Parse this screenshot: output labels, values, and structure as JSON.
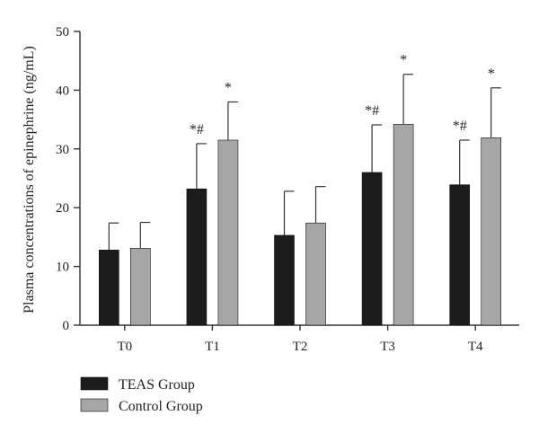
{
  "chart_data": {
    "type": "bar",
    "ylabel": "Plasma concentrations of epinephrine (ng/mL)",
    "xlabel": "",
    "categories": [
      "T0",
      "T1",
      "T2",
      "T3",
      "T4"
    ],
    "ylim": [
      0,
      50
    ],
    "yticks": [
      0,
      10,
      20,
      30,
      40,
      50
    ],
    "legend_position": "bottom-left",
    "grid": false,
    "series": [
      {
        "name": "TEAS Group",
        "color": "#1c1c1c",
        "values": [
          12.8,
          23.2,
          15.3,
          26.0,
          23.9
        ],
        "errors": [
          4.6,
          7.7,
          7.5,
          8.1,
          7.6
        ],
        "annotations": [
          "",
          "*#",
          "",
          "*#",
          "*#"
        ]
      },
      {
        "name": "Control Group",
        "color": "#a6a6a6",
        "values": [
          13.1,
          31.5,
          17.4,
          34.2,
          31.9
        ],
        "errors": [
          4.4,
          6.5,
          6.2,
          8.5,
          8.5
        ],
        "annotations": [
          "",
          "*",
          "",
          "*",
          "*"
        ]
      }
    ]
  }
}
